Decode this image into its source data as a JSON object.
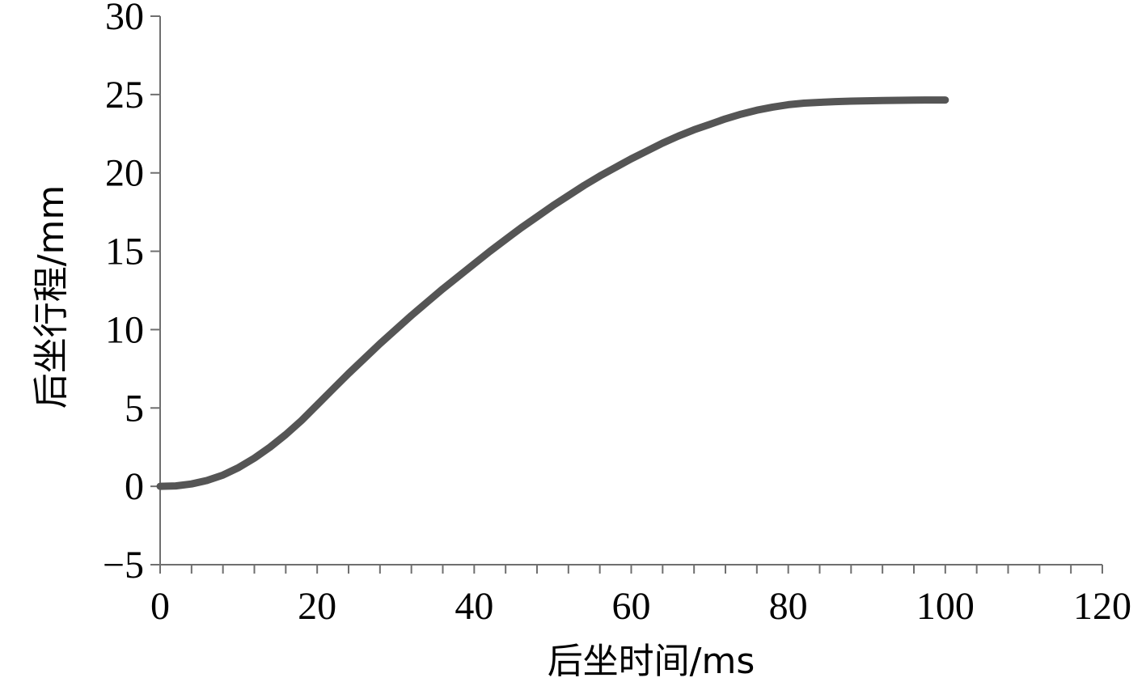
{
  "chart_data": {
    "type": "line",
    "title": "",
    "xlabel": "后坐时间/ms",
    "ylabel": "后坐行程/mm",
    "xlim": [
      0,
      120
    ],
    "ylim": [
      -5,
      30
    ],
    "x_major_ticks": [
      0,
      20,
      40,
      60,
      80,
      100,
      120
    ],
    "x_minor_step": 4,
    "y_ticks": [
      -5,
      0,
      5,
      10,
      15,
      20,
      25,
      30
    ],
    "x_tick_labels": [
      "0",
      "20",
      "40",
      "60",
      "80",
      "100",
      "120"
    ],
    "y_tick_labels": [
      "−5",
      "0",
      "5",
      "10",
      "15",
      "20",
      "25",
      "30"
    ],
    "grid": false,
    "legend": "none",
    "line_color": "#555555",
    "series": [
      {
        "x": [
          0,
          2,
          4,
          6,
          8,
          10,
          12,
          14,
          16,
          18,
          20,
          22,
          24,
          26,
          28,
          30,
          32,
          34,
          36,
          38,
          40,
          42,
          44,
          46,
          48,
          50,
          52,
          54,
          56,
          58,
          60,
          62,
          64,
          66,
          68,
          70,
          72,
          74,
          76,
          78,
          80,
          82,
          84,
          86,
          88,
          90,
          92,
          94,
          96,
          98,
          100
        ],
        "y": [
          0,
          0.03,
          0.15,
          0.38,
          0.72,
          1.2,
          1.8,
          2.5,
          3.3,
          4.2,
          5.2,
          6.2,
          7.2,
          8.15,
          9.1,
          10.0,
          10.9,
          11.75,
          12.6,
          13.4,
          14.2,
          15.0,
          15.75,
          16.5,
          17.2,
          17.9,
          18.55,
          19.2,
          19.8,
          20.35,
          20.9,
          21.4,
          21.9,
          22.35,
          22.75,
          23.1,
          23.45,
          23.75,
          24.0,
          24.2,
          24.35,
          24.45,
          24.5,
          24.55,
          24.58,
          24.6,
          24.62,
          24.63,
          24.64,
          24.65,
          24.65
        ]
      }
    ]
  }
}
